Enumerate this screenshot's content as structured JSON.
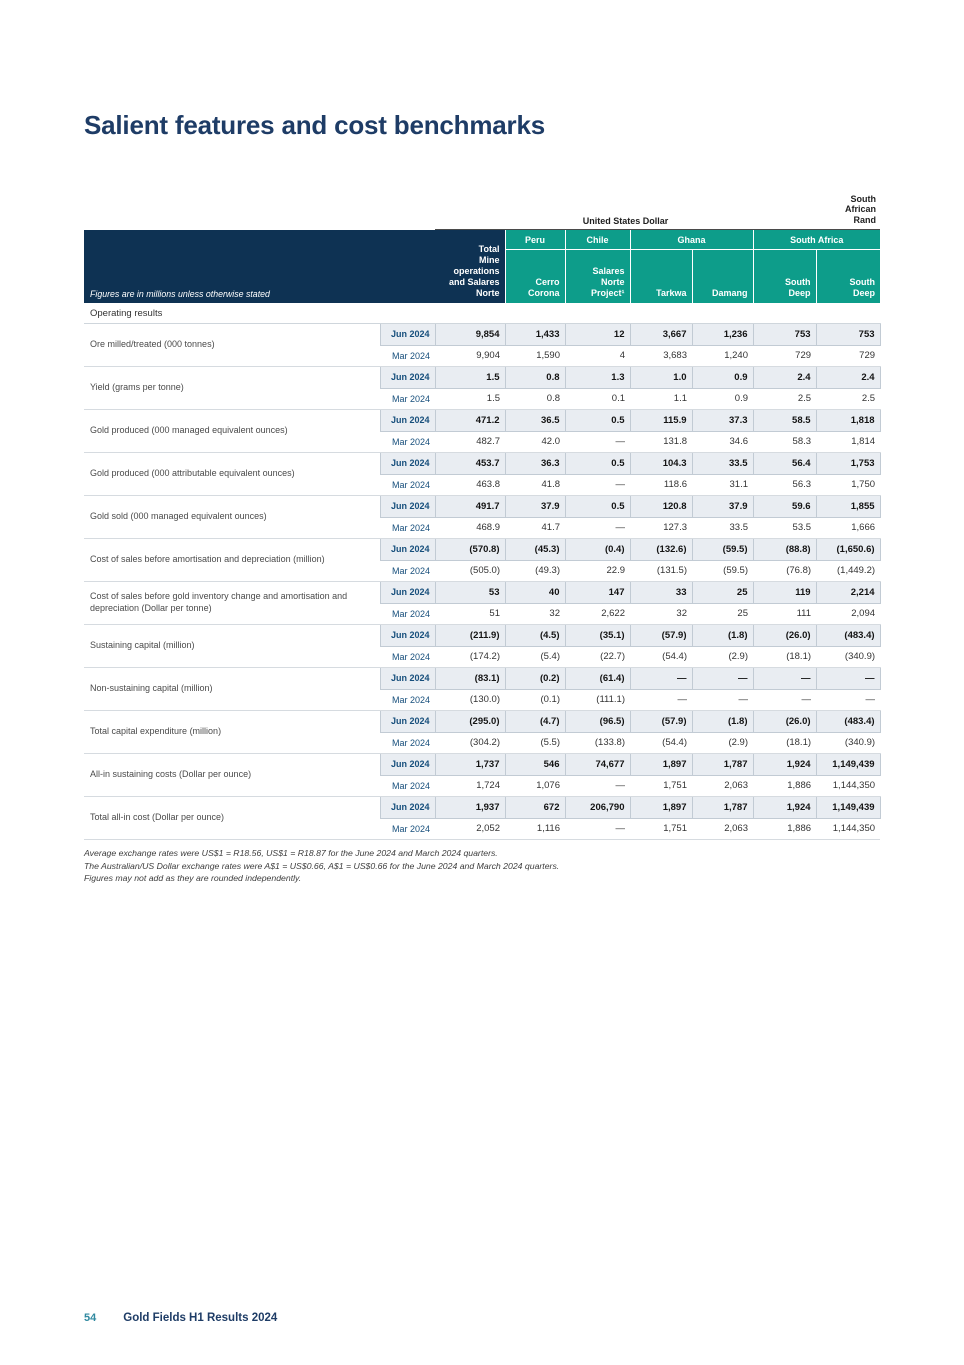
{
  "page": {
    "title": "Salient features and cost benchmarks",
    "footer": {
      "page_number": "54",
      "brand": "Gold Fields H1 Results",
      "year": "2024"
    }
  },
  "table": {
    "currency_usd": "United States Dollar",
    "currency_zar": "South\nAfrican\nRand",
    "corner_note": "Figures are in millions unless otherwise stated",
    "col_total": "Total\nMine\noperations\nand Salares\nNorte",
    "groups": {
      "peru": "Peru",
      "chile": "Chile",
      "ghana": "Ghana",
      "south_africa": "South Africa"
    },
    "sub_headers": [
      "Cerro\nCorona",
      "Salares\nNorte\nProject¹",
      "Tarkwa",
      "Damang",
      "South\nDeep",
      "South\nDeep"
    ],
    "section": "Operating results",
    "row_labels": {
      "jun": "Jun 2024",
      "mar": "Mar 2024"
    },
    "rows": [
      {
        "metric": "Ore milled/treated (000 tonnes)",
        "jun": [
          "9,854",
          "1,433",
          "12",
          "3,667",
          "1,236",
          "753",
          "753"
        ],
        "mar": [
          "9,904",
          "1,590",
          "4",
          "3,683",
          "1,240",
          "729",
          "729"
        ]
      },
      {
        "metric": "Yield (grams per tonne)",
        "jun": [
          "1.5",
          "0.8",
          "1.3",
          "1.0",
          "0.9",
          "2.4",
          "2.4"
        ],
        "mar": [
          "1.5",
          "0.8",
          "0.1",
          "1.1",
          "0.9",
          "2.5",
          "2.5"
        ]
      },
      {
        "metric": "Gold produced (000 managed equivalent ounces)",
        "jun": [
          "471.2",
          "36.5",
          "0.5",
          "115.9",
          "37.3",
          "58.5",
          "1,818"
        ],
        "mar": [
          "482.7",
          "42.0",
          "—",
          "131.8",
          "34.6",
          "58.3",
          "1,814"
        ]
      },
      {
        "metric": "Gold produced (000 attributable equivalent ounces)",
        "jun": [
          "453.7",
          "36.3",
          "0.5",
          "104.3",
          "33.5",
          "56.4",
          "1,753"
        ],
        "mar": [
          "463.8",
          "41.8",
          "—",
          "118.6",
          "31.1",
          "56.3",
          "1,750"
        ]
      },
      {
        "metric": "Gold sold (000 managed equivalent ounces)",
        "jun": [
          "491.7",
          "37.9",
          "0.5",
          "120.8",
          "37.9",
          "59.6",
          "1,855"
        ],
        "mar": [
          "468.9",
          "41.7",
          "—",
          "127.3",
          "33.5",
          "53.5",
          "1,666"
        ]
      },
      {
        "metric": "Cost of sales before amortisation and depreciation (million)",
        "jun": [
          "(570.8)",
          "(45.3)",
          "(0.4)",
          "(132.6)",
          "(59.5)",
          "(88.8)",
          "(1,650.6)"
        ],
        "mar": [
          "(505.0)",
          "(49.3)",
          "22.9",
          "(131.5)",
          "(59.5)",
          "(76.8)",
          "(1,449.2)"
        ]
      },
      {
        "metric": "Cost of sales before gold inventory change and amortisation and depreciation (Dollar per tonne)",
        "jun": [
          "53",
          "40",
          "147",
          "33",
          "25",
          "119",
          "2,214"
        ],
        "mar": [
          "51",
          "32",
          "2,622",
          "32",
          "25",
          "111",
          "2,094"
        ]
      },
      {
        "metric": "Sustaining capital (million)",
        "jun": [
          "(211.9)",
          "(4.5)",
          "(35.1)",
          "(57.9)",
          "(1.8)",
          "(26.0)",
          "(483.4)"
        ],
        "mar": [
          "(174.2)",
          "(5.4)",
          "(22.7)",
          "(54.4)",
          "(2.9)",
          "(18.1)",
          "(340.9)"
        ]
      },
      {
        "metric": "Non-sustaining capital (million)",
        "jun": [
          "(83.1)",
          "(0.2)",
          "(61.4)",
          "—",
          "—",
          "—",
          "—"
        ],
        "mar": [
          "(130.0)",
          "(0.1)",
          "(111.1)",
          "—",
          "—",
          "—",
          "—"
        ]
      },
      {
        "metric": "Total capital expenditure (million)",
        "jun": [
          "(295.0)",
          "(4.7)",
          "(96.5)",
          "(57.9)",
          "(1.8)",
          "(26.0)",
          "(483.4)"
        ],
        "mar": [
          "(304.2)",
          "(5.5)",
          "(133.8)",
          "(54.4)",
          "(2.9)",
          "(18.1)",
          "(340.9)"
        ]
      },
      {
        "metric": "All-in sustaining costs (Dollar per ounce)",
        "jun": [
          "1,737",
          "546",
          "74,677",
          "1,897",
          "1,787",
          "1,924",
          "1,149,439"
        ],
        "mar": [
          "1,724",
          "1,076",
          "—",
          "1,751",
          "2,063",
          "1,886",
          "1,144,350"
        ]
      },
      {
        "metric": "Total all-in cost (Dollar per ounce)",
        "jun": [
          "1,937",
          "672",
          "206,790",
          "1,897",
          "1,787",
          "1,924",
          "1,149,439"
        ],
        "mar": [
          "2,052",
          "1,116",
          "—",
          "1,751",
          "2,063",
          "1,886",
          "1,144,350"
        ]
      }
    ],
    "footnotes": [
      "Average exchange rates were US$1 = R18.56, US$1 = R18.87 for the June 2024 and March 2024 quarters.",
      "The Australian/US Dollar exchange rates were A$1 = US$0.66, A$1 = US$0.66 for the June 2024 and March 2024 quarters.",
      "Figures may not add as they are rounded independently."
    ]
  }
}
